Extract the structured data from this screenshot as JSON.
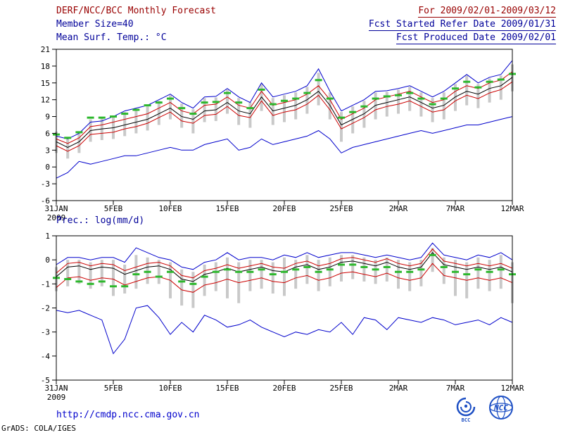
{
  "header": {
    "title": "DERF/NCC/BCC Monthly Forecast",
    "member_size": "Member Size=40",
    "var_label_top": "Mean Surf. Temp.: °C",
    "for_range": "For 2009/02/01-2009/03/12",
    "ref_date": "Fcst Started Refer Date 2009/01/31",
    "produced_date": "Fcst Produced Date 2009/02/01"
  },
  "footer": {
    "url": "http://cmdp.ncc.cma.gov.cn",
    "credit": "GrADS: COLA/IGES",
    "logo_bcc_label": "BCC",
    "logo_ncc_label": "NCC"
  },
  "colors": {
    "title_maroon": "#990000",
    "label_navy": "#000099",
    "line_blue": "#0000cc",
    "line_red": "#cc0000",
    "line_black": "#000000",
    "obs_green": "#2db82d",
    "bar_gray": "#c9c9c9",
    "link_blue": "#0000cc",
    "logo_blue": "#1d4fc4"
  },
  "chart_data": [
    {
      "type": "line",
      "title": "Mean Surf. Temp.: °C",
      "ylabel": "°C",
      "ylim": [
        -6,
        21
      ],
      "y_ticks": [
        21,
        18,
        15,
        12,
        9,
        6,
        3,
        0,
        -3,
        -6
      ],
      "xlim": [
        0,
        40
      ],
      "x_tick_positions": [
        0,
        5,
        10,
        15,
        20,
        25,
        30,
        35,
        40
      ],
      "x_tick_labels": [
        "31JAN",
        "5FEB",
        "10FEB",
        "15FEB",
        "20FEB",
        "25FEB",
        "2MAR",
        "7MAR",
        "12MAR"
      ],
      "year_label": "2009",
      "legend_position": "none",
      "grid": false,
      "series": [
        {
          "name": "ensemble-max",
          "color": "#0000cc",
          "values": [
            5.5,
            5.0,
            6.0,
            8.0,
            8.2,
            9.0,
            10.0,
            10.5,
            11.0,
            12.0,
            13.0,
            11.5,
            10.5,
            12.5,
            12.6,
            14.0,
            12.5,
            11.5,
            15.0,
            12.5,
            13.0,
            13.5,
            14.5,
            17.5,
            13.5,
            10.0,
            11.0,
            12.0,
            13.5,
            13.6,
            14.0,
            14.5,
            13.5,
            12.5,
            13.5,
            15.0,
            16.5,
            15.0,
            16.0,
            16.5,
            19.0
          ]
        },
        {
          "name": "upper-quartile",
          "color": "#cc0000",
          "values": [
            5.0,
            4.2,
            5.2,
            7.2,
            7.5,
            8.0,
            8.5,
            9.0,
            9.5,
            10.5,
            11.5,
            10.0,
            9.5,
            11.0,
            11.2,
            12.5,
            11.0,
            10.5,
            13.5,
            11.0,
            11.5,
            12.0,
            13.0,
            14.5,
            12.0,
            8.5,
            9.5,
            10.5,
            12.0,
            12.5,
            13.0,
            13.5,
            12.5,
            11.5,
            12.0,
            13.5,
            14.5,
            14.0,
            15.0,
            15.5,
            17.0
          ]
        },
        {
          "name": "ensemble-mean",
          "color": "#000000",
          "values": [
            4.5,
            3.5,
            4.5,
            6.5,
            6.8,
            7.0,
            7.5,
            8.0,
            8.5,
            9.5,
            10.5,
            9.0,
            8.5,
            10.0,
            10.2,
            11.5,
            10.0,
            9.5,
            12.5,
            10.0,
            10.5,
            11.0,
            12.0,
            13.5,
            11.0,
            7.5,
            8.5,
            9.5,
            11.0,
            11.5,
            12.0,
            12.5,
            11.5,
            10.5,
            11.0,
            12.5,
            13.5,
            13.0,
            14.0,
            14.5,
            16.0
          ]
        },
        {
          "name": "lower-quartile",
          "color": "#cc0000",
          "values": [
            3.8,
            2.8,
            3.8,
            5.8,
            6.0,
            6.2,
            6.8,
            7.2,
            7.8,
            8.8,
            9.8,
            8.2,
            7.8,
            9.2,
            9.4,
            10.8,
            9.2,
            8.8,
            11.8,
            9.2,
            9.8,
            10.2,
            11.2,
            12.8,
            10.2,
            6.8,
            7.8,
            8.8,
            10.2,
            10.8,
            11.2,
            11.8,
            10.8,
            9.8,
            10.2,
            11.8,
            12.8,
            12.2,
            13.2,
            13.8,
            15.2
          ]
        },
        {
          "name": "ensemble-min",
          "color": "#0000cc",
          "values": [
            -2.0,
            -1.0,
            1.0,
            0.5,
            1.0,
            1.5,
            2.0,
            2.0,
            2.5,
            3.0,
            3.5,
            3.0,
            3.0,
            4.0,
            4.5,
            5.0,
            3.0,
            3.5,
            5.0,
            4.0,
            4.5,
            5.0,
            5.5,
            6.5,
            5.0,
            2.5,
            3.5,
            4.0,
            4.5,
            5.0,
            5.5,
            6.0,
            6.5,
            6.0,
            6.5,
            7.0,
            7.5,
            7.5,
            8.0,
            8.5,
            9.0
          ]
        }
      ],
      "obs": {
        "name": "observation",
        "color": "#2db82d",
        "values": [
          5.8,
          5.2,
          6.2,
          8.8,
          8.8,
          9.0,
          9.5,
          10.2,
          11.0,
          11.5,
          12.2,
          10.5,
          9.5,
          11.5,
          11.6,
          13.2,
          11.5,
          10.5,
          13.8,
          11.2,
          11.8,
          12.2,
          13.2,
          15.5,
          12.2,
          8.8,
          9.8,
          10.8,
          12.2,
          12.6,
          12.8,
          13.2,
          12.2,
          11.2,
          12.2,
          14.0,
          15.2,
          14.2,
          15.2,
          15.6,
          16.6
        ]
      },
      "bars": {
        "name": "ensemble-spread",
        "color": "#c9c9c9",
        "low": [
          2.5,
          1.5,
          2.5,
          4.5,
          4.8,
          5.0,
          5.5,
          6.0,
          6.5,
          7.5,
          8.5,
          7.0,
          6.0,
          8.0,
          8.2,
          9.5,
          7.5,
          7.0,
          10.0,
          7.5,
          8.0,
          8.5,
          9.5,
          11.0,
          8.5,
          4.5,
          6.0,
          7.0,
          8.5,
          9.0,
          9.5,
          10.0,
          9.0,
          8.0,
          8.5,
          10.0,
          11.0,
          10.5,
          11.5,
          12.0,
          13.5
        ],
        "high": [
          6.3,
          5.3,
          6.3,
          8.5,
          8.8,
          9.2,
          9.8,
          10.3,
          10.8,
          11.8,
          12.8,
          11.3,
          10.3,
          12.3,
          12.4,
          13.8,
          12.3,
          11.5,
          14.8,
          12.3,
          12.8,
          13.3,
          14.3,
          16.8,
          13.3,
          9.8,
          10.8,
          11.8,
          13.3,
          13.4,
          13.8,
          14.3,
          13.3,
          12.3,
          13.3,
          14.8,
          16.3,
          14.8,
          15.8,
          16.3,
          18.3
        ]
      }
    },
    {
      "type": "line",
      "title": "Prec.: log(mm/d)",
      "ylabel": "log(mm/d)",
      "ylim": [
        -5,
        1
      ],
      "y_ticks": [
        1,
        0,
        -1,
        -2,
        -3,
        -4,
        -5
      ],
      "xlim": [
        0,
        40
      ],
      "x_tick_positions": [
        0,
        5,
        10,
        15,
        20,
        25,
        30,
        35,
        40
      ],
      "x_tick_labels": [
        "31JAN",
        "5FEB",
        "10FEB",
        "15FEB",
        "20FEB",
        "25FEB",
        "2MAR",
        "7MAR",
        "12MAR"
      ],
      "year_label": "2009",
      "legend_position": "none",
      "grid": false,
      "series": [
        {
          "name": "ensemble-max",
          "color": "#0000cc",
          "values": [
            -0.2,
            0.1,
            0.1,
            0.0,
            0.1,
            0.1,
            -0.1,
            0.5,
            0.3,
            0.1,
            0.0,
            -0.3,
            -0.4,
            -0.1,
            0.0,
            0.3,
            0.0,
            0.1,
            0.1,
            0.0,
            0.2,
            0.1,
            0.3,
            0.1,
            0.2,
            0.3,
            0.3,
            0.2,
            0.1,
            0.2,
            0.1,
            0.0,
            0.1,
            0.7,
            0.2,
            0.1,
            0.0,
            0.2,
            0.1,
            0.3,
            0.0
          ]
        },
        {
          "name": "upper-quartile",
          "color": "#cc0000",
          "values": [
            -0.55,
            -0.15,
            -0.1,
            -0.25,
            -0.15,
            -0.2,
            -0.45,
            -0.3,
            -0.15,
            -0.1,
            -0.25,
            -0.65,
            -0.75,
            -0.45,
            -0.35,
            -0.2,
            -0.35,
            -0.25,
            -0.15,
            -0.3,
            -0.35,
            -0.15,
            -0.05,
            -0.25,
            -0.15,
            0.05,
            0.1,
            0.0,
            -0.1,
            0.05,
            -0.15,
            -0.25,
            -0.15,
            0.45,
            -0.05,
            -0.15,
            -0.25,
            -0.15,
            -0.25,
            -0.15,
            -0.35
          ]
        },
        {
          "name": "ensemble-mean",
          "color": "#000000",
          "values": [
            -0.7,
            -0.3,
            -0.25,
            -0.4,
            -0.3,
            -0.35,
            -0.6,
            -0.45,
            -0.3,
            -0.25,
            -0.4,
            -0.8,
            -0.9,
            -0.6,
            -0.5,
            -0.35,
            -0.5,
            -0.4,
            -0.3,
            -0.45,
            -0.5,
            -0.3,
            -0.2,
            -0.4,
            -0.3,
            -0.1,
            -0.05,
            -0.15,
            -0.25,
            -0.1,
            -0.3,
            -0.4,
            -0.3,
            0.3,
            -0.2,
            -0.3,
            -0.4,
            -0.3,
            -0.4,
            -0.3,
            -0.5
          ]
        },
        {
          "name": "lower-quartile",
          "color": "#cc0000",
          "values": [
            -1.15,
            -0.75,
            -0.7,
            -0.85,
            -0.75,
            -0.8,
            -1.05,
            -0.9,
            -0.75,
            -0.7,
            -0.85,
            -1.25,
            -1.35,
            -1.05,
            -0.95,
            -0.8,
            -0.95,
            -0.85,
            -0.75,
            -0.9,
            -0.95,
            -0.75,
            -0.65,
            -0.85,
            -0.75,
            -0.55,
            -0.5,
            -0.6,
            -0.7,
            -0.55,
            -0.75,
            -0.85,
            -0.75,
            -0.15,
            -0.65,
            -0.75,
            -0.85,
            -0.75,
            -0.85,
            -0.75,
            -0.95
          ]
        },
        {
          "name": "ensemble-min",
          "color": "#0000cc",
          "values": [
            -2.1,
            -2.2,
            -2.1,
            -2.3,
            -2.5,
            -3.9,
            -3.3,
            -2.0,
            -1.9,
            -2.4,
            -3.1,
            -2.6,
            -3.0,
            -2.3,
            -2.5,
            -2.8,
            -2.7,
            -2.5,
            -2.8,
            -3.0,
            -3.2,
            -3.0,
            -3.1,
            -2.9,
            -3.0,
            -2.6,
            -3.1,
            -2.4,
            -2.5,
            -2.9,
            -2.4,
            -2.5,
            -2.6,
            -2.4,
            -2.5,
            -2.7,
            -2.6,
            -2.5,
            -2.7,
            -2.4,
            -2.6
          ]
        }
      ],
      "obs": {
        "name": "observation",
        "color": "#2db82d",
        "values": [
          -0.75,
          -0.8,
          -0.9,
          -1.0,
          -0.9,
          -1.1,
          -1.1,
          -0.6,
          -0.5,
          -0.7,
          -0.5,
          -0.9,
          -1.0,
          -0.7,
          -0.5,
          -0.4,
          -0.5,
          -0.5,
          -0.4,
          -0.6,
          -0.5,
          -0.4,
          -0.3,
          -0.5,
          -0.4,
          -0.2,
          -0.2,
          -0.3,
          -0.4,
          -0.3,
          -0.5,
          -0.5,
          -0.4,
          0.2,
          -0.3,
          -0.5,
          -0.6,
          -0.4,
          -0.5,
          -0.4,
          -0.6
        ]
      },
      "bars": {
        "name": "ensemble-spread",
        "color": "#c9c9c9",
        "low": [
          -1.3,
          -1.1,
          -1.0,
          -1.2,
          -1.1,
          -1.5,
          -1.4,
          -1.2,
          -1.0,
          -1.0,
          -1.6,
          -1.9,
          -2.0,
          -1.5,
          -1.3,
          -1.6,
          -1.8,
          -1.3,
          -1.2,
          -1.4,
          -1.5,
          -1.2,
          -1.0,
          -1.3,
          -1.1,
          -0.9,
          -0.8,
          -0.9,
          -1.0,
          -0.9,
          -1.2,
          -1.3,
          -1.1,
          -0.5,
          -1.0,
          -1.5,
          -1.6,
          -1.2,
          -1.3,
          -1.2,
          -1.8
        ],
        "high": [
          -0.3,
          0.0,
          0.0,
          -0.1,
          0.0,
          0.0,
          -0.2,
          0.2,
          0.1,
          0.0,
          -0.1,
          -0.4,
          -0.5,
          -0.2,
          -0.1,
          0.1,
          -0.1,
          0.0,
          0.0,
          -0.1,
          0.1,
          0.0,
          0.2,
          0.0,
          0.1,
          0.2,
          0.2,
          0.1,
          0.0,
          0.1,
          0.0,
          -0.1,
          0.0,
          0.5,
          0.1,
          0.0,
          -0.1,
          0.1,
          0.0,
          0.2,
          -0.1
        ]
      }
    }
  ]
}
